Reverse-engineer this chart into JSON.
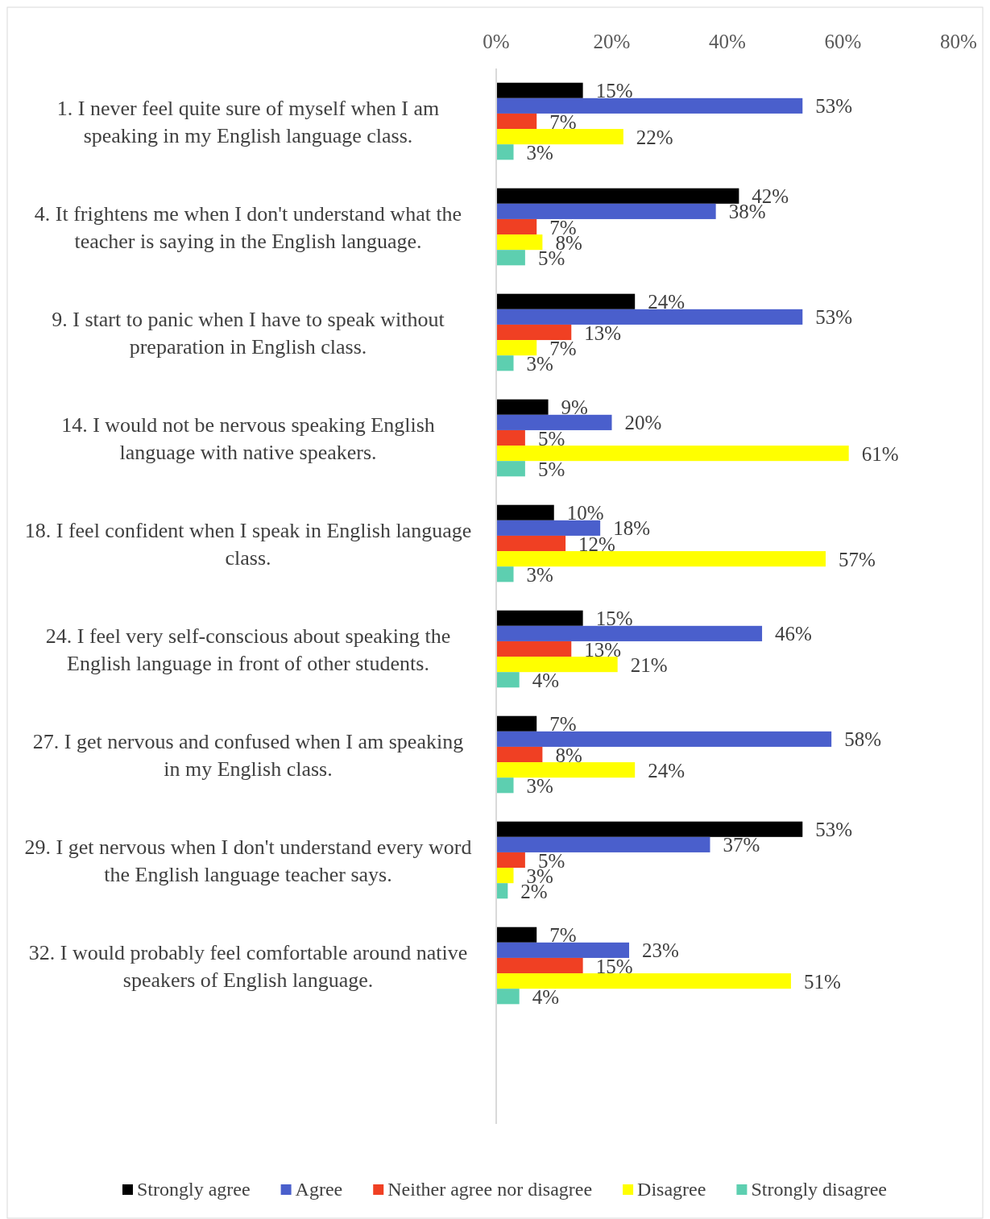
{
  "chart_data": {
    "type": "bar",
    "orientation": "horizontal",
    "categories": [
      "1. I never feel quite sure of myself when I am speaking in my English language class.",
      "4. It frightens me when I don't understand what the teacher is saying in the English language.",
      "9. I start to panic when I have to speak without preparation in English class.",
      "14. I would not be nervous speaking English language with native speakers.",
      "18. I feel confident when I speak in English language class.",
      "24. I feel very self-conscious about speaking the English language in front of other students.",
      "27. I get nervous and confused when I am speaking in my English class.",
      "29. I get nervous when I don't understand every word the English language teacher says.",
      "32. I would probably feel comfortable around native speakers of English language.",
      null
    ],
    "xlim": [
      0,
      80
    ],
    "xticks": [
      {
        "value": 0,
        "label": "0%"
      },
      {
        "value": 20,
        "label": "20%"
      },
      {
        "value": 40,
        "label": "40%"
      },
      {
        "value": 60,
        "label": "60%"
      },
      {
        "value": 80,
        "label": "80%"
      }
    ],
    "legend": "bottom",
    "series": [
      {
        "name": "Strongly agree",
        "color": "#000000",
        "values": [
          15,
          42,
          24,
          9,
          10,
          15,
          7,
          53,
          7,
          null
        ],
        "value_labels": [
          "15%",
          "42%",
          "24%",
          "9%",
          "10%",
          "15%",
          "7%",
          "53%",
          "7%",
          null
        ]
      },
      {
        "name": "Agree",
        "color": "#4a5fcc",
        "values": [
          53,
          38,
          53,
          20,
          18,
          46,
          58,
          37,
          23,
          null
        ],
        "value_labels": [
          "53%",
          "38%",
          "53%",
          "20%",
          "18%",
          "46%",
          "58%",
          "37%",
          "23%",
          null
        ]
      },
      {
        "name": "Neither agree nor disagree",
        "color": "#f04023",
        "values": [
          7,
          7,
          13,
          5,
          12,
          13,
          8,
          5,
          15,
          null
        ],
        "value_labels": [
          "7%",
          "7%",
          "13%",
          "5%",
          "12%",
          "13%",
          "8%",
          "5%",
          "15%",
          null
        ]
      },
      {
        "name": "Disagree",
        "color": "#ffff00",
        "values": [
          22,
          8,
          7,
          61,
          57,
          21,
          24,
          3,
          51,
          null
        ],
        "value_labels": [
          "22%",
          "8%",
          "7%",
          "61%",
          "57%",
          "21%",
          "24%",
          "3%",
          "51%",
          null
        ]
      },
      {
        "name": "Strongly disagree",
        "color": "#5dcfb0",
        "values": [
          3,
          5,
          3,
          5,
          3,
          4,
          3,
          2,
          4,
          null
        ],
        "value_labels": [
          "3%",
          "5%",
          "3%",
          "5%",
          "3%",
          "4%",
          "3%",
          "2%",
          "4%",
          null
        ]
      }
    ]
  }
}
